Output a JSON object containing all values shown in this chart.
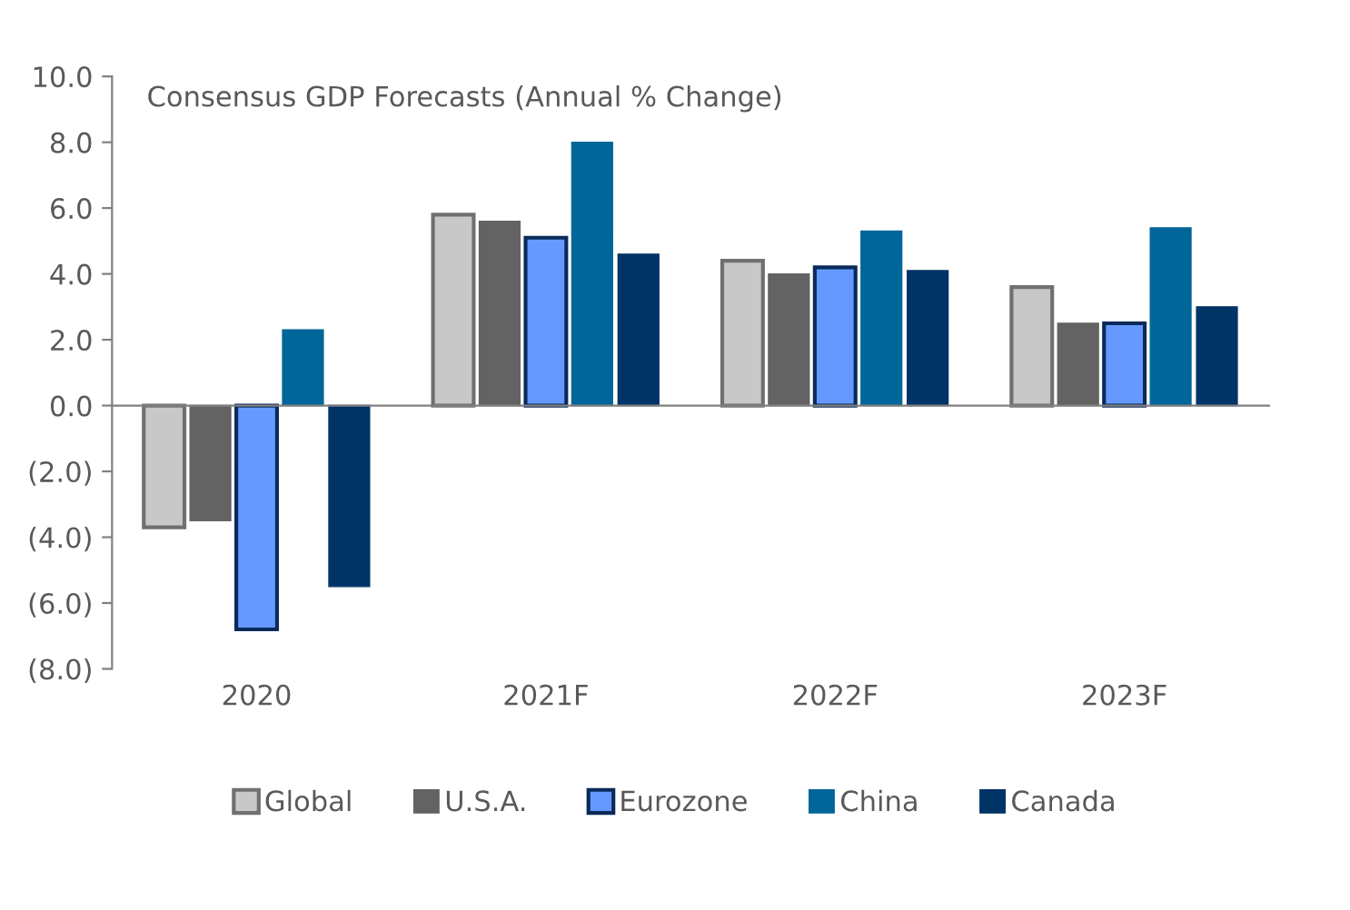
{
  "chart_data": {
    "type": "bar",
    "title": "Consensus GDP Forecasts (Annual % Change)",
    "categories": [
      "2020",
      "2021F",
      "2022F",
      "2023F"
    ],
    "series": [
      {
        "name": "Global",
        "color": "#c8c8c8",
        "values": [
          -3.7,
          5.8,
          4.4,
          3.6
        ]
      },
      {
        "name": "U.S.A.",
        "color": "#636363",
        "values": [
          -3.5,
          5.6,
          4.0,
          2.5
        ]
      },
      {
        "name": "Eurozone",
        "color": "#6699ff",
        "values": [
          -6.8,
          5.1,
          4.2,
          2.5
        ]
      },
      {
        "name": "China",
        "color": "#006699",
        "values": [
          2.3,
          8.0,
          5.3,
          5.4
        ]
      },
      {
        "name": "Canada",
        "color": "#003366",
        "values": [
          -5.5,
          4.6,
          4.1,
          3.0
        ]
      }
    ],
    "ylim": [
      -8,
      10
    ],
    "yticks": [
      {
        "value": -8,
        "label": "(8.0)"
      },
      {
        "value": -6,
        "label": "(6.0)"
      },
      {
        "value": -4,
        "label": "(4.0)"
      },
      {
        "value": -2,
        "label": "(2.0)"
      },
      {
        "value": 0,
        "label": "0.0"
      },
      {
        "value": 2,
        "label": "2.0"
      },
      {
        "value": 4,
        "label": "4.0"
      },
      {
        "value": 6,
        "label": "6.0"
      },
      {
        "value": 8,
        "label": "8.0"
      },
      {
        "value": 10,
        "label": "10.0"
      }
    ],
    "legend": "bottom"
  }
}
